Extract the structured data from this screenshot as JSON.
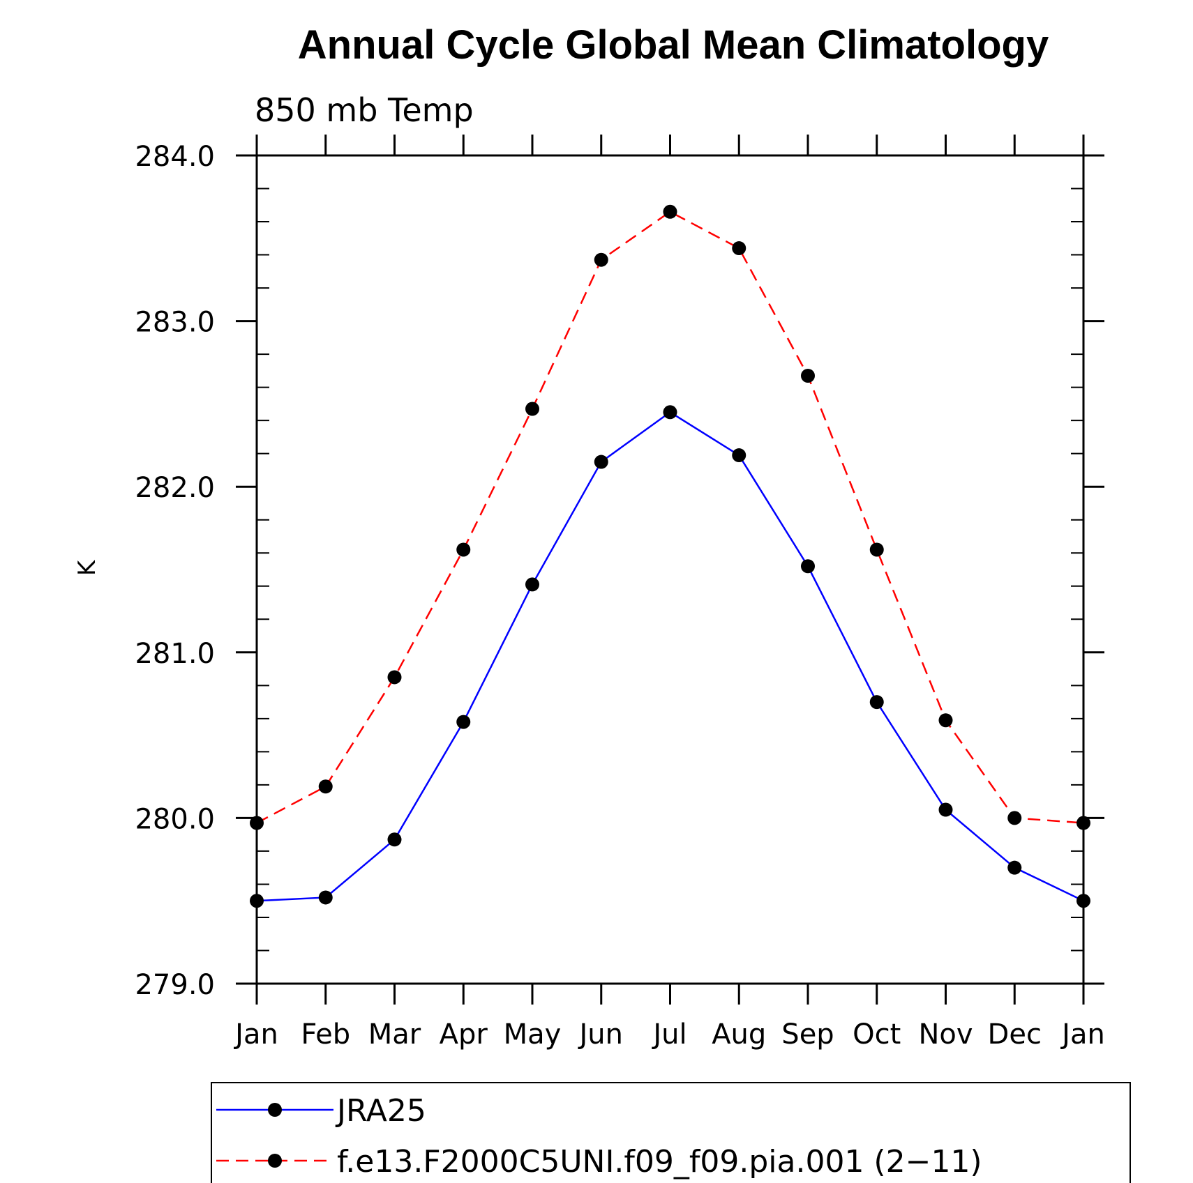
{
  "chart_data": {
    "type": "line",
    "title": "Annual Cycle Global Mean Climatology",
    "subtitle": "850 mb Temp",
    "xlabel": "",
    "ylabel": "K",
    "categories": [
      "Jan",
      "Feb",
      "Mar",
      "Apr",
      "May",
      "Jun",
      "Jul",
      "Aug",
      "Sep",
      "Oct",
      "Nov",
      "Dec",
      "Jan"
    ],
    "ylim": [
      279.0,
      284.0
    ],
    "yticks": [
      "279.0",
      "280.0",
      "281.0",
      "282.0",
      "283.0",
      "284.0"
    ],
    "grid": false,
    "legend_position": "bottom",
    "series": [
      {
        "name": "JRA25",
        "color": "#0000ff",
        "line_style": "solid",
        "marker": "circle",
        "values": [
          279.5,
          279.52,
          279.87,
          280.58,
          281.41,
          282.15,
          282.45,
          282.19,
          281.52,
          280.7,
          280.05,
          279.7,
          279.5
        ]
      },
      {
        "name": "f.e13.F2000C5UNI.f09_f09.pia.001 (2−11)",
        "color": "#ff0000",
        "line_style": "dashed",
        "marker": "circle",
        "values": [
          279.97,
          280.19,
          280.85,
          281.62,
          282.47,
          283.37,
          283.66,
          283.44,
          282.67,
          281.62,
          280.59,
          280.0,
          279.97
        ]
      }
    ]
  }
}
